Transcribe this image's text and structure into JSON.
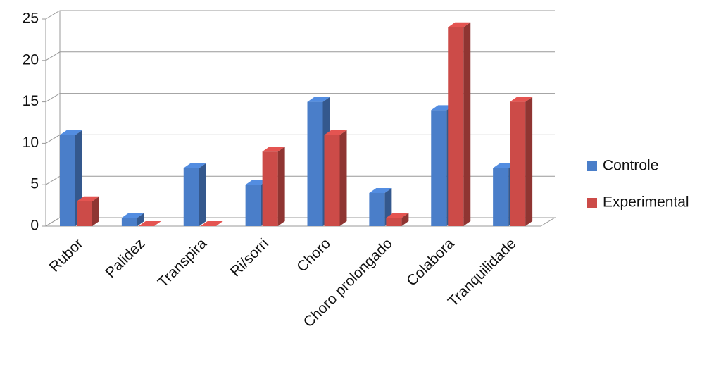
{
  "chart_data": {
    "type": "bar3d",
    "categories": [
      "Rubor",
      "Palidez",
      "Transpira",
      "Ri/sorri",
      "Choro",
      "Choro prolongado",
      "Colabora",
      "Tranquilidade"
    ],
    "series": [
      {
        "name": "Controle",
        "color": "#4a7ec9",
        "values": [
          11,
          1,
          7,
          5,
          15,
          4,
          14,
          7
        ]
      },
      {
        "name": "Experimental",
        "color": "#cc4b48",
        "values": [
          3,
          0,
          0,
          9,
          11,
          1,
          24,
          15
        ]
      }
    ],
    "ylim": [
      0,
      25
    ],
    "yticks": [
      0,
      5,
      10,
      15,
      20,
      25
    ],
    "grid": true,
    "legend": "right"
  }
}
